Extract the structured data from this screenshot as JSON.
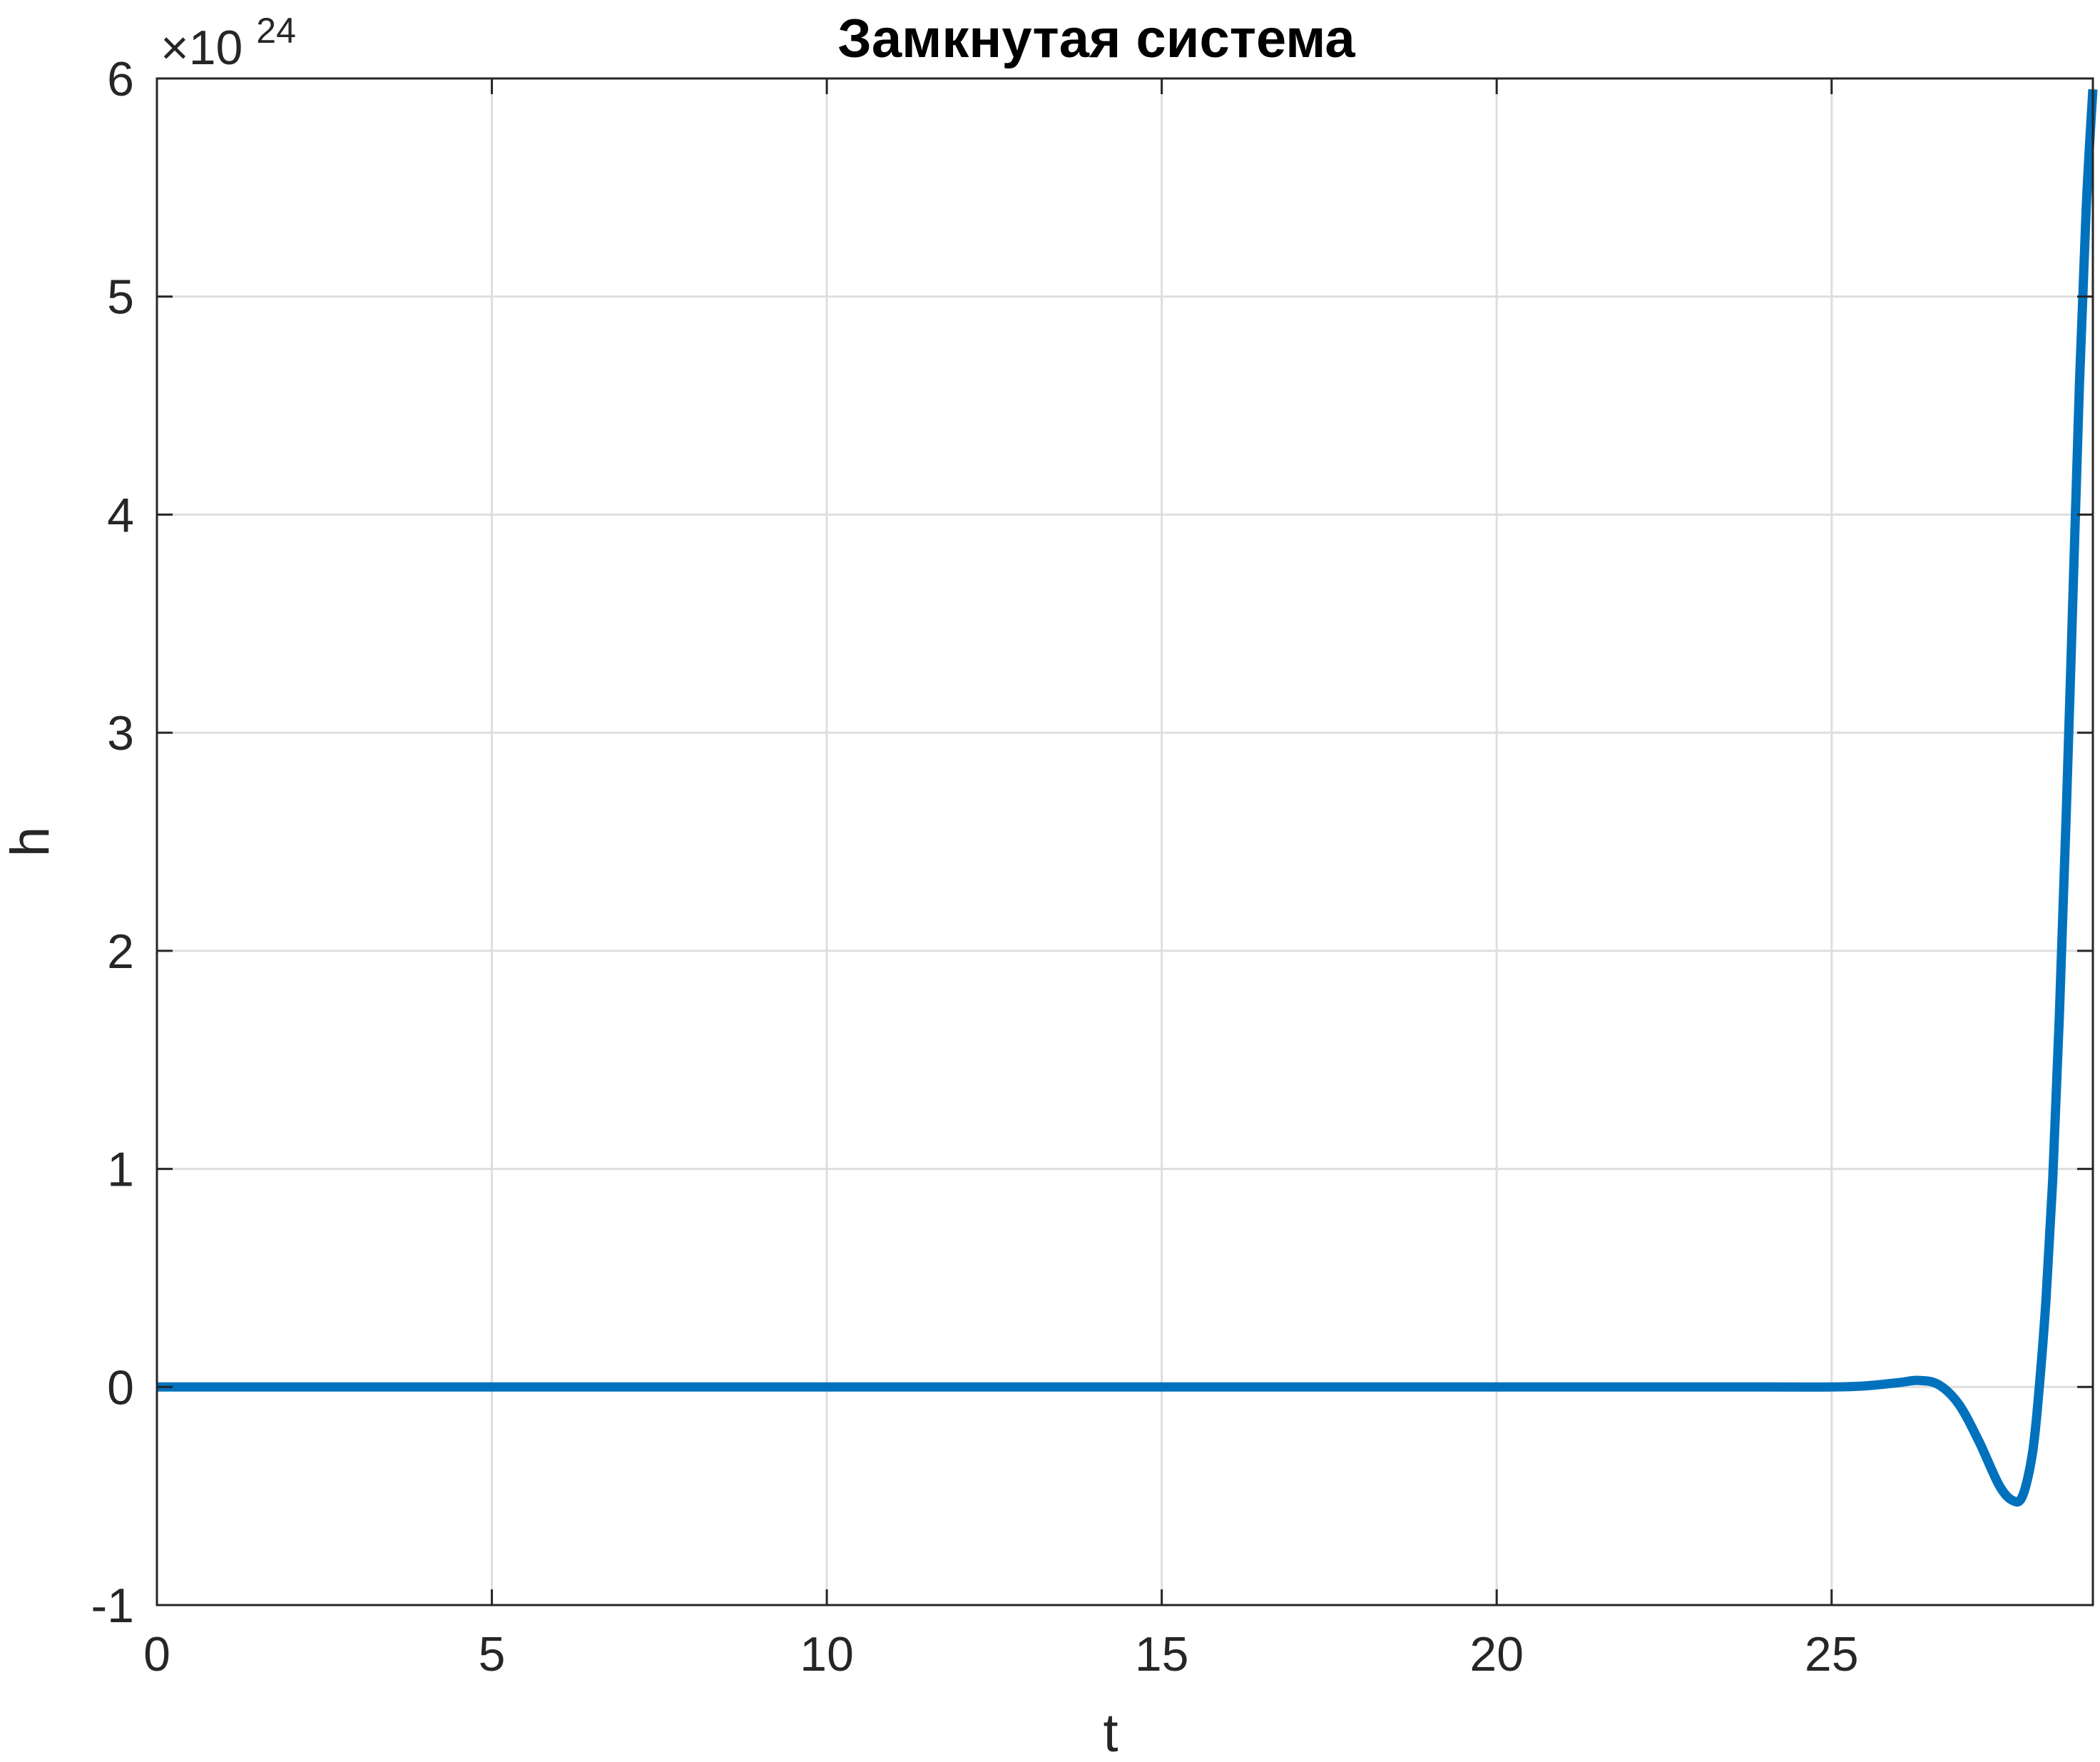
{
  "chart_data": {
    "type": "line",
    "title": "Замкнутая система",
    "xlabel": "t",
    "ylabel": "h",
    "y_exponent_label": {
      "base": "×10",
      "power": "24"
    },
    "xlim": [
      0,
      28.9
    ],
    "ylim": [
      -1,
      6
    ],
    "y_scale_factor": 1e+24,
    "xticks": [
      0,
      5,
      10,
      15,
      20,
      25
    ],
    "xtick_labels": [
      "0",
      "5",
      "10",
      "15",
      "20",
      "25"
    ],
    "yticks": [
      -1,
      0,
      1,
      2,
      3,
      4,
      5,
      6
    ],
    "ytick_labels": [
      "-1",
      "0",
      "1",
      "2",
      "3",
      "4",
      "5",
      "6"
    ],
    "grid": true,
    "line_color": "#0072BD",
    "series": [
      {
        "x": [
          0,
          5,
          10,
          15,
          20,
          24,
          25,
          25.5,
          26.0,
          26.3,
          26.6,
          26.9,
          27.2,
          27.5,
          27.7,
          27.85,
          28.0,
          28.1,
          28.2,
          28.3,
          28.4,
          28.5,
          28.6,
          28.7,
          28.8,
          28.9
        ],
        "y": [
          0,
          0,
          0,
          0,
          0,
          0,
          0,
          0.005,
          0.02,
          0.03,
          0.01,
          -0.08,
          -0.25,
          -0.45,
          -0.52,
          -0.5,
          -0.3,
          0.0,
          0.4,
          0.95,
          1.7,
          2.6,
          3.6,
          4.6,
          5.4,
          5.95
        ]
      }
    ]
  }
}
